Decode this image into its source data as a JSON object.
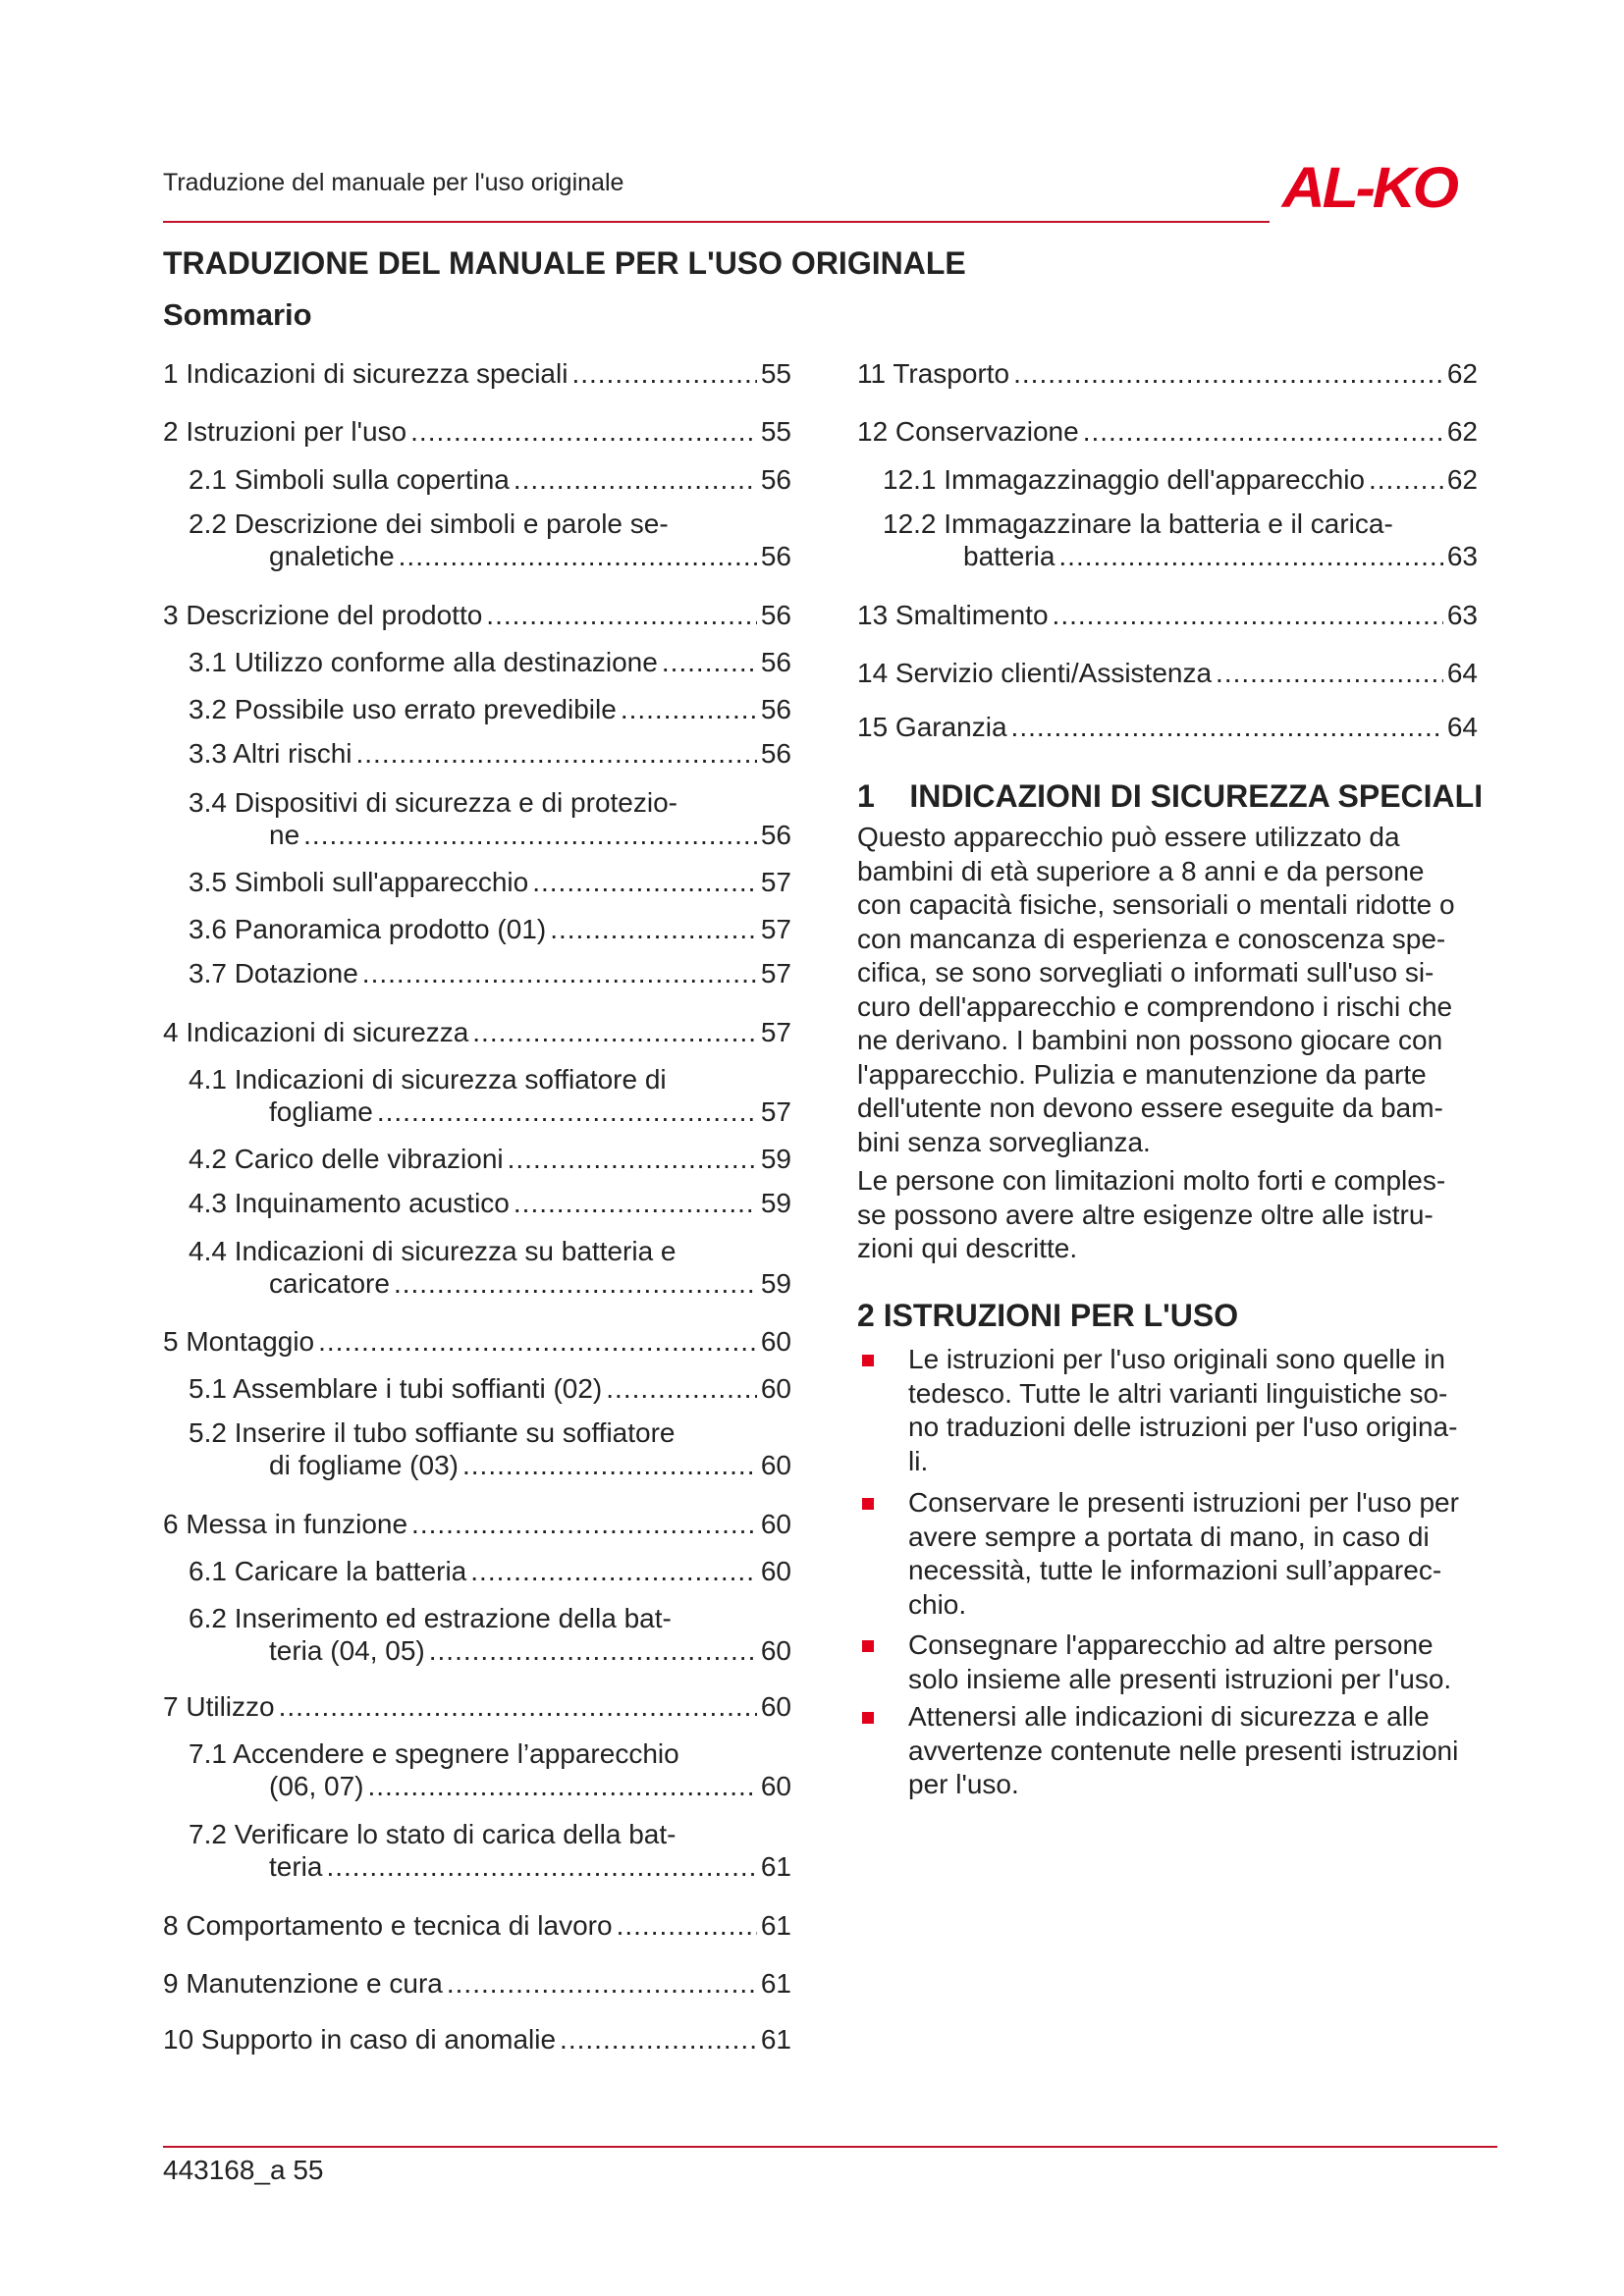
{
  "header": {
    "running_title": "Traduzione del manuale per l'uso originale",
    "logo_text": "AL-KO",
    "accent_color": "#e2001a"
  },
  "title": "TRADUZIONE DEL MANUALE PER L'USO ORIGINALE",
  "subtitle": "Sommario",
  "toc_left": [
    {
      "l1": "1 Indicazioni di sicurezza speciali",
      "page": "55"
    },
    {
      "l1": "2 Istruzioni per l'uso",
      "page": "55"
    },
    {
      "l1": "2.1 Simboli sulla copertina",
      "page": "56"
    },
    {
      "l1": "2.2 Descrizione dei simboli e parole se-",
      "l2": "gnaletiche",
      "page": "56"
    },
    {
      "l1": "3 Descrizione del prodotto",
      "page": "56"
    },
    {
      "l1": "3.1 Utilizzo conforme alla destinazione",
      "page": "56"
    },
    {
      "l1": "3.2 Possibile uso errato prevedibile",
      "page": "56"
    },
    {
      "l1": "3.3 Altri rischi",
      "page": "56"
    },
    {
      "l1": "3.4 Dispositivi di sicurezza e di protezio-",
      "l2": "ne",
      "page": "56"
    },
    {
      "l1": "3.5 Simboli sull'apparecchio",
      "page": "57"
    },
    {
      "l1": "3.6 Panoramica prodotto (01)",
      "page": "57"
    },
    {
      "l1": "3.7 Dotazione",
      "page": "57"
    },
    {
      "l1": "4 Indicazioni di sicurezza",
      "page": "57"
    },
    {
      "l1": "4.1 Indicazioni di sicurezza soffiatore di",
      "l2": "fogliame",
      "page": "57"
    },
    {
      "l1": "4.2 Carico delle vibrazioni",
      "page": "59"
    },
    {
      "l1": "4.3 Inquinamento acustico",
      "page": "59"
    },
    {
      "l1": "4.4 Indicazioni di sicurezza su batteria e",
      "l2": "caricatore",
      "page": "59"
    },
    {
      "l1": "5 Montaggio",
      "page": "60"
    },
    {
      "l1": "5.1 Assemblare i tubi soffianti (02)",
      "page": "60"
    },
    {
      "l1": "5.2 Inserire il tubo soffiante su soffiatore",
      "l2": "di fogliame (03)",
      "page": "60"
    },
    {
      "l1": "6 Messa in funzione",
      "page": "60"
    },
    {
      "l1": "6.1 Caricare la batteria",
      "page": "60"
    },
    {
      "l1": "6.2 Inserimento ed estrazione della bat-",
      "l2": "teria (04, 05)",
      "page": "60"
    },
    {
      "l1": "7 Utilizzo",
      "page": "60"
    },
    {
      "l1": "7.1 Accendere e spegnere l’apparecchio",
      "l2": "(06, 07)",
      "page": "60"
    },
    {
      "l1": "7.2 Verificare lo stato di carica della bat-",
      "l2": "teria",
      "page": "61"
    },
    {
      "l1": "8 Comportamento e tecnica di lavoro",
      "page": "61"
    },
    {
      "l1": "9 Manutenzione e cura",
      "page": "61"
    },
    {
      "l1": "10 Supporto in caso di anomalie",
      "page": "61"
    }
  ],
  "toc_right": [
    {
      "l1": "11 Trasporto",
      "page": "62"
    },
    {
      "l1": "12 Conservazione",
      "page": "62"
    },
    {
      "l1": "12.1 Immagazzinaggio dell'apparecchio",
      "page": "62"
    },
    {
      "l1": "12.2 Immagazzinare la batteria e il carica-",
      "l2": "batteria",
      "page": "63"
    },
    {
      "l1": "13 Smaltimento",
      "page": "63"
    },
    {
      "l1": "14 Servizio clienti/Assistenza",
      "page": "64"
    },
    {
      "l1": "15 Garanzia",
      "page": "64"
    }
  ],
  "section1": {
    "heading": "1    INDICAZIONI DI SICUREZZA SPECIALI",
    "para1": [
      "Questo apparecchio può essere utilizzato da",
      "bambini di età superiore a 8 anni e da persone",
      "con capacità fisiche, sensoriali o mentali ridotte o",
      "con mancanza di esperienza e conoscenza spe-",
      "cifica, se sono sorvegliati o informati sull'uso si-",
      "curo dell'apparecchio e comprendono i rischi che",
      "ne derivano. I bambini non possono giocare con",
      "l'apparecchio. Pulizia e manutenzione da parte",
      "dell'utente non devono essere eseguite da bam-",
      "bini senza sorveglianza."
    ],
    "para2": [
      "Le persone con limitazioni molto forti e comples-",
      "se possono avere altre esigenze oltre alle istru-",
      "zioni qui descritte."
    ]
  },
  "section2": {
    "heading": "2 ISTRUZIONI PER L'USO",
    "bullets": [
      [
        "Le istruzioni per l'uso originali sono quelle in",
        "tedesco. Tutte le altri varianti linguistiche so-",
        "no traduzioni delle istruzioni per l'uso origina-",
        "li."
      ],
      [
        "Conservare le presenti istruzioni per l'uso per",
        "avere sempre a portata di mano, in caso di",
        "necessità, tutte le informazioni sull’apparec-",
        "chio."
      ],
      [
        "Consegnare l'apparecchio ad altre persone",
        "solo insieme alle presenti istruzioni per l'uso."
      ],
      [
        "Attenersi alle indicazioni di sicurezza e alle",
        "avvertenze contenute nelle presenti istruzioni",
        "per l'uso."
      ]
    ]
  },
  "footer": {
    "page_label": "443168_a 55"
  }
}
